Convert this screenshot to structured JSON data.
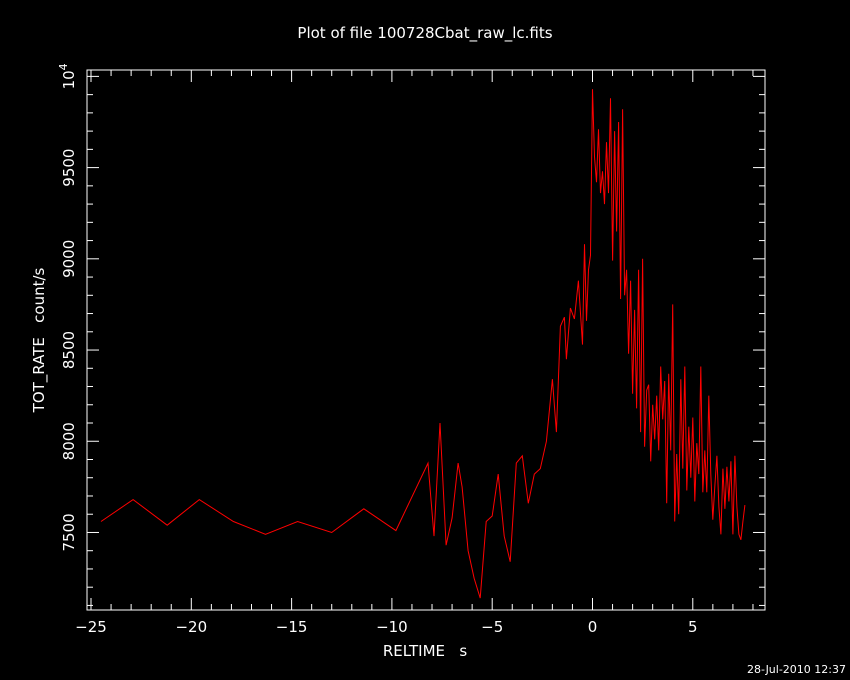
{
  "chart_data": {
    "type": "line",
    "title": "Plot of file 100728Cbat_raw_lc.fits",
    "xlabel": "RELTIME   s",
    "ylabel": "TOT_RATE   count/s",
    "xlim": [
      -25.2,
      8.6
    ],
    "ylim": [
      7075,
      10035
    ],
    "grid": false,
    "x_major_ticks": [
      -25,
      -20,
      -15,
      -10,
      -5,
      0,
      5
    ],
    "x_tick_labels": [
      "−25",
      "−20",
      "−15",
      "−10",
      "−5",
      "0",
      "5"
    ],
    "y_major_ticks": [
      7500,
      8000,
      8500,
      9000,
      9500,
      10000
    ],
    "y_tick_labels": [
      "7500",
      "8000",
      "8500",
      "9000",
      "9500",
      "10"
    ],
    "y_top_label_exponent": "4",
    "series": [
      {
        "color": "#ff0000",
        "x": [
          -24.5,
          -22.9,
          -21.2,
          -19.6,
          -17.9,
          -16.3,
          -14.7,
          -13.0,
          -11.4,
          -9.8,
          -8.2,
          -7.9,
          -7.6,
          -7.3,
          -7.0,
          -6.7,
          -6.5,
          -6.2,
          -5.9,
          -5.6,
          -5.3,
          -5.0,
          -4.7,
          -4.4,
          -4.1,
          -3.8,
          -3.5,
          -3.2,
          -2.9,
          -2.6,
          -2.3,
          -2.0,
          -1.8,
          -1.6,
          -1.4,
          -1.3,
          -1.1,
          -0.9,
          -0.7,
          -0.5,
          -0.4,
          -0.3,
          -0.2,
          -0.1,
          0.0,
          0.1,
          0.2,
          0.3,
          0.4,
          0.5,
          0.6,
          0.7,
          0.8,
          0.9,
          1.0,
          1.1,
          1.2,
          1.3,
          1.4,
          1.5,
          1.6,
          1.7,
          1.8,
          1.9,
          2.0,
          2.1,
          2.2,
          2.3,
          2.4,
          2.5,
          2.6,
          2.7,
          2.8,
          2.9,
          3.0,
          3.1,
          3.2,
          3.3,
          3.4,
          3.5,
          3.6,
          3.7,
          3.8,
          3.9,
          4.0,
          4.1,
          4.2,
          4.3,
          4.4,
          4.5,
          4.6,
          4.7,
          4.8,
          4.9,
          5.0,
          5.1,
          5.2,
          5.3,
          5.4,
          5.5,
          5.6,
          5.7,
          5.8,
          5.9,
          6.0,
          6.1,
          6.2,
          6.3,
          6.4,
          6.5,
          6.6,
          6.7,
          6.8,
          6.9,
          7.0,
          7.1,
          7.2,
          7.3,
          7.4,
          7.5,
          7.6
        ],
        "y": [
          7560,
          7680,
          7540,
          7680,
          7560,
          7490,
          7560,
          7500,
          7630,
          7510,
          7880,
          7480,
          8100,
          7430,
          7580,
          7880,
          7750,
          7400,
          7250,
          7140,
          7560,
          7590,
          7820,
          7480,
          7340,
          7880,
          7920,
          7660,
          7820,
          7850,
          8000,
          8340,
          8050,
          8630,
          8680,
          8450,
          8730,
          8670,
          8880,
          8530,
          9080,
          8660,
          8940,
          9020,
          9930,
          9560,
          9420,
          9710,
          9360,
          9480,
          9300,
          9640,
          9360,
          9880,
          8990,
          9700,
          9150,
          9750,
          8780,
          9820,
          8800,
          8940,
          8480,
          8880,
          8260,
          8720,
          8180,
          8940,
          8050,
          9000,
          7970,
          8280,
          8310,
          7890,
          8200,
          8010,
          8250,
          7950,
          8410,
          8120,
          8330,
          7660,
          8370,
          7950,
          8750,
          7560,
          7930,
          7600,
          8340,
          7850,
          8410,
          7730,
          8080,
          7800,
          8130,
          7670,
          7990,
          7820,
          8410,
          7720,
          7950,
          7720,
          8250,
          7820,
          7570,
          7760,
          7920,
          7640,
          7490,
          7850,
          7630,
          7860,
          7670,
          7890,
          7490,
          7920,
          7640,
          7490,
          7460,
          7560,
          7650
        ]
      }
    ]
  },
  "timestamp": "28-Jul-2010 12:37"
}
